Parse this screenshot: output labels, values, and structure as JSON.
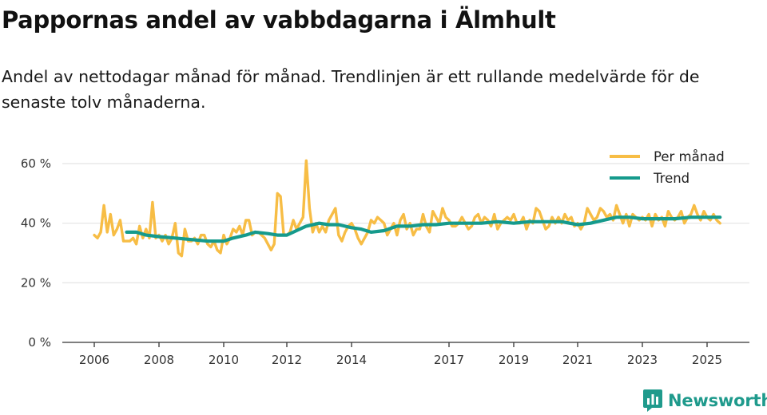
{
  "header": {
    "title": "Pappornas andel av vabbdagarna i Älmhult",
    "subtitle": "Andel av nettodagar månad för månad. Trendlinjen är ett rullande medelvärde för de senaste tolv månaderna."
  },
  "brand": {
    "name": "Newsworthy",
    "icon": "bar-chart-logo-icon"
  },
  "colors": {
    "monthly": "#f7bd45",
    "trend": "#159a8c",
    "grid": "#e3e3e3",
    "axis": "#333333"
  },
  "chart_data": {
    "type": "line",
    "title": "Pappornas andel av vabbdagarna i Älmhult",
    "xlabel": "",
    "ylabel": "",
    "x_unit": "decimal year",
    "ylim": [
      0,
      60
    ],
    "y_ticks": [
      0,
      20,
      40,
      60
    ],
    "y_tick_labels": [
      "0 %",
      "20 %",
      "40 %",
      "60 %"
    ],
    "x_ticks": [
      2006,
      2008,
      2010,
      2012,
      2014,
      2017,
      2019,
      2021,
      2023,
      2025
    ],
    "x_tick_labels": [
      "2006",
      "2008",
      "2010",
      "2012",
      "2014",
      "2017",
      "2019",
      "2021",
      "2023",
      "2025"
    ],
    "legend": {
      "position": "top-right",
      "entries": [
        "Per månad",
        "Trend"
      ]
    },
    "series": [
      {
        "name": "Per månad",
        "points": [
          [
            2006.0,
            36
          ],
          [
            2006.1,
            35
          ],
          [
            2006.2,
            37
          ],
          [
            2006.3,
            46
          ],
          [
            2006.4,
            37
          ],
          [
            2006.5,
            43
          ],
          [
            2006.6,
            36
          ],
          [
            2006.7,
            38
          ],
          [
            2006.8,
            41
          ],
          [
            2006.9,
            34
          ],
          [
            2007.0,
            34
          ],
          [
            2007.1,
            34
          ],
          [
            2007.2,
            35
          ],
          [
            2007.3,
            33
          ],
          [
            2007.4,
            39
          ],
          [
            2007.5,
            35
          ],
          [
            2007.6,
            38
          ],
          [
            2007.7,
            35
          ],
          [
            2007.8,
            47
          ],
          [
            2007.9,
            35
          ],
          [
            2008.0,
            36
          ],
          [
            2008.1,
            34
          ],
          [
            2008.2,
            36
          ],
          [
            2008.3,
            33
          ],
          [
            2008.4,
            35
          ],
          [
            2008.5,
            40
          ],
          [
            2008.6,
            30
          ],
          [
            2008.7,
            29
          ],
          [
            2008.8,
            38
          ],
          [
            2008.9,
            34
          ],
          [
            2009.0,
            34
          ],
          [
            2009.1,
            35
          ],
          [
            2009.2,
            33
          ],
          [
            2009.3,
            36
          ],
          [
            2009.4,
            36
          ],
          [
            2009.5,
            33
          ],
          [
            2009.6,
            32
          ],
          [
            2009.7,
            34
          ],
          [
            2009.8,
            31
          ],
          [
            2009.9,
            30
          ],
          [
            2010.0,
            36
          ],
          [
            2010.1,
            33
          ],
          [
            2010.2,
            35
          ],
          [
            2010.3,
            38
          ],
          [
            2010.4,
            37
          ],
          [
            2010.5,
            39
          ],
          [
            2010.6,
            36
          ],
          [
            2010.7,
            41
          ],
          [
            2010.8,
            41
          ],
          [
            2010.9,
            36
          ],
          [
            2011.0,
            37
          ],
          [
            2011.1,
            37
          ],
          [
            2011.2,
            36
          ],
          [
            2011.3,
            35
          ],
          [
            2011.4,
            33
          ],
          [
            2011.5,
            31
          ],
          [
            2011.6,
            33
          ],
          [
            2011.7,
            50
          ],
          [
            2011.8,
            49
          ],
          [
            2011.9,
            36
          ],
          [
            2012.0,
            36
          ],
          [
            2012.1,
            37
          ],
          [
            2012.2,
            41
          ],
          [
            2012.3,
            38
          ],
          [
            2012.4,
            40
          ],
          [
            2012.5,
            42
          ],
          [
            2012.6,
            61
          ],
          [
            2012.7,
            45
          ],
          [
            2012.8,
            37
          ],
          [
            2012.9,
            40
          ],
          [
            2013.0,
            37
          ],
          [
            2013.1,
            39
          ],
          [
            2013.2,
            37
          ],
          [
            2013.3,
            41
          ],
          [
            2013.4,
            43
          ],
          [
            2013.5,
            45
          ],
          [
            2013.6,
            36
          ],
          [
            2013.7,
            34
          ],
          [
            2013.8,
            37
          ],
          [
            2013.9,
            39
          ],
          [
            2014.0,
            40
          ],
          [
            2014.1,
            38
          ],
          [
            2014.2,
            35
          ],
          [
            2014.3,
            33
          ],
          [
            2014.4,
            35
          ],
          [
            2014.5,
            37
          ],
          [
            2014.6,
            41
          ],
          [
            2014.7,
            40
          ],
          [
            2014.8,
            42
          ],
          [
            2014.9,
            41
          ],
          [
            2015.0,
            40
          ],
          [
            2015.1,
            36
          ],
          [
            2015.2,
            38
          ],
          [
            2015.3,
            40
          ],
          [
            2015.4,
            36
          ],
          [
            2015.5,
            41
          ],
          [
            2015.6,
            43
          ],
          [
            2015.7,
            38
          ],
          [
            2015.8,
            40
          ],
          [
            2015.9,
            36
          ],
          [
            2016.0,
            38
          ],
          [
            2016.1,
            38
          ],
          [
            2016.2,
            43
          ],
          [
            2016.3,
            39
          ],
          [
            2016.4,
            37
          ],
          [
            2016.5,
            44
          ],
          [
            2016.6,
            42
          ],
          [
            2016.7,
            40
          ],
          [
            2016.8,
            45
          ],
          [
            2016.9,
            42
          ],
          [
            2017.0,
            41
          ],
          [
            2017.1,
            39
          ],
          [
            2017.2,
            39
          ],
          [
            2017.3,
            40
          ],
          [
            2017.4,
            42
          ],
          [
            2017.5,
            40
          ],
          [
            2017.6,
            38
          ],
          [
            2017.7,
            39
          ],
          [
            2017.8,
            42
          ],
          [
            2017.9,
            43
          ],
          [
            2018.0,
            40
          ],
          [
            2018.1,
            42
          ],
          [
            2018.2,
            41
          ],
          [
            2018.3,
            39
          ],
          [
            2018.4,
            43
          ],
          [
            2018.5,
            38
          ],
          [
            2018.6,
            40
          ],
          [
            2018.7,
            41
          ],
          [
            2018.8,
            42
          ],
          [
            2018.9,
            41
          ],
          [
            2019.0,
            43
          ],
          [
            2019.1,
            40
          ],
          [
            2019.2,
            40
          ],
          [
            2019.3,
            42
          ],
          [
            2019.4,
            38
          ],
          [
            2019.5,
            41
          ],
          [
            2019.6,
            40
          ],
          [
            2019.7,
            45
          ],
          [
            2019.8,
            44
          ],
          [
            2019.9,
            41
          ],
          [
            2020.0,
            38
          ],
          [
            2020.1,
            39
          ],
          [
            2020.2,
            42
          ],
          [
            2020.3,
            40
          ],
          [
            2020.4,
            42
          ],
          [
            2020.5,
            40
          ],
          [
            2020.6,
            43
          ],
          [
            2020.7,
            41
          ],
          [
            2020.8,
            42
          ],
          [
            2020.9,
            39
          ],
          [
            2021.0,
            40
          ],
          [
            2021.1,
            38
          ],
          [
            2021.2,
            40
          ],
          [
            2021.3,
            45
          ],
          [
            2021.4,
            43
          ],
          [
            2021.5,
            41
          ],
          [
            2021.6,
            42
          ],
          [
            2021.7,
            45
          ],
          [
            2021.8,
            44
          ],
          [
            2021.9,
            42
          ],
          [
            2022.0,
            43
          ],
          [
            2022.1,
            41
          ],
          [
            2022.2,
            46
          ],
          [
            2022.3,
            43
          ],
          [
            2022.4,
            40
          ],
          [
            2022.5,
            43
          ],
          [
            2022.6,
            39
          ],
          [
            2022.7,
            43
          ],
          [
            2022.8,
            42
          ],
          [
            2022.9,
            41
          ],
          [
            2023.0,
            42
          ],
          [
            2023.1,
            41
          ],
          [
            2023.2,
            43
          ],
          [
            2023.3,
            39
          ],
          [
            2023.4,
            43
          ],
          [
            2023.5,
            41
          ],
          [
            2023.6,
            42
          ],
          [
            2023.7,
            39
          ],
          [
            2023.8,
            44
          ],
          [
            2023.9,
            42
          ],
          [
            2024.0,
            41
          ],
          [
            2024.1,
            42
          ],
          [
            2024.2,
            44
          ],
          [
            2024.3,
            40
          ],
          [
            2024.4,
            42
          ],
          [
            2024.5,
            43
          ],
          [
            2024.6,
            46
          ],
          [
            2024.7,
            43
          ],
          [
            2024.8,
            41
          ],
          [
            2024.9,
            44
          ],
          [
            2025.0,
            42
          ],
          [
            2025.1,
            41
          ],
          [
            2025.2,
            43
          ],
          [
            2025.3,
            41
          ],
          [
            2025.4,
            40
          ]
        ]
      },
      {
        "name": "Trend",
        "points": [
          [
            2007.0,
            37
          ],
          [
            2007.3,
            37
          ],
          [
            2007.6,
            36
          ],
          [
            2008.0,
            35.5
          ],
          [
            2008.5,
            35
          ],
          [
            2009.0,
            34.5
          ],
          [
            2009.5,
            34
          ],
          [
            2010.0,
            34
          ],
          [
            2010.3,
            35
          ],
          [
            2010.7,
            36
          ],
          [
            2011.0,
            37
          ],
          [
            2011.4,
            36.5
          ],
          [
            2011.7,
            36
          ],
          [
            2012.0,
            36
          ],
          [
            2012.3,
            37.5
          ],
          [
            2012.6,
            39
          ],
          [
            2013.0,
            40
          ],
          [
            2013.3,
            39.5
          ],
          [
            2013.6,
            39.5
          ],
          [
            2014.0,
            38.5
          ],
          [
            2014.3,
            38
          ],
          [
            2014.6,
            37
          ],
          [
            2015.0,
            37.5
          ],
          [
            2015.4,
            39
          ],
          [
            2015.8,
            39
          ],
          [
            2016.2,
            39.5
          ],
          [
            2016.6,
            39.5
          ],
          [
            2017.0,
            40
          ],
          [
            2017.5,
            40
          ],
          [
            2018.0,
            40
          ],
          [
            2018.5,
            40.5
          ],
          [
            2019.0,
            40
          ],
          [
            2019.5,
            40.5
          ],
          [
            2020.0,
            40.5
          ],
          [
            2020.5,
            40.5
          ],
          [
            2021.0,
            39.5
          ],
          [
            2021.4,
            40
          ],
          [
            2021.8,
            41
          ],
          [
            2022.2,
            42
          ],
          [
            2022.6,
            42
          ],
          [
            2023.0,
            41.5
          ],
          [
            2023.5,
            41.5
          ],
          [
            2024.0,
            41.5
          ],
          [
            2024.5,
            42
          ],
          [
            2025.0,
            42
          ],
          [
            2025.4,
            42
          ]
        ]
      }
    ]
  }
}
